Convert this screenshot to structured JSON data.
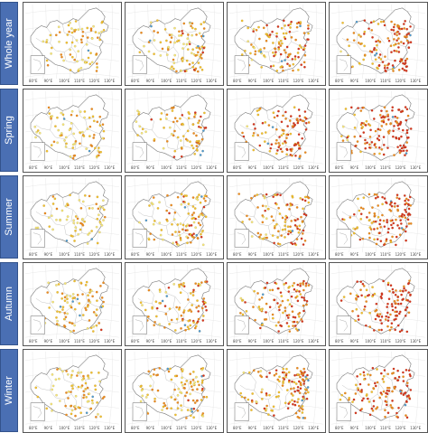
{
  "rows": [
    {
      "label": "Whole year"
    },
    {
      "label": "Spring"
    },
    {
      "label": "Summer"
    },
    {
      "label": "Autumn"
    },
    {
      "label": "Winter"
    }
  ],
  "colors": {
    "pale": "#f4e77a",
    "yellow": "#f2c12e",
    "orange": "#ee8a1f",
    "red": "#d7301f",
    "blue": "#4a9ad6",
    "row_label_bg": "#4a6fb3"
  },
  "longitude_ticks": [
    "80°E",
    "90°E",
    "100°E",
    "110°E",
    "120°E",
    "130°E"
  ]
}
